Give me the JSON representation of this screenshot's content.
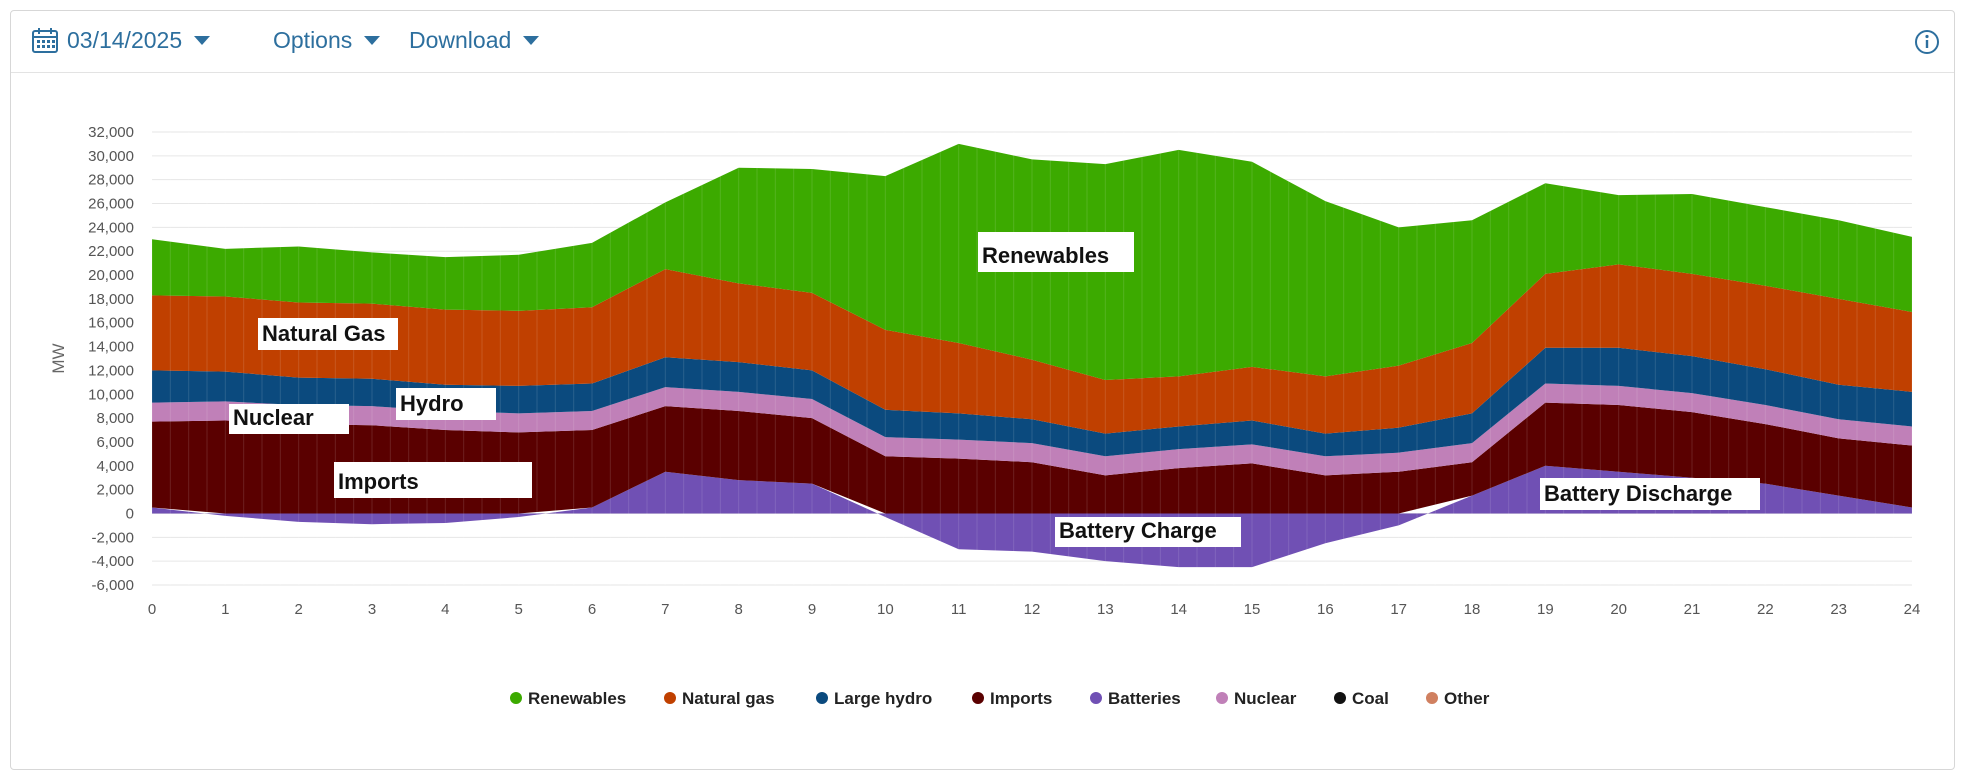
{
  "toolbar": {
    "date": "03/14/2025",
    "options_label": "Options",
    "download_label": "Download"
  },
  "colors": {
    "accent": "#2d6f9e",
    "Renewables": "#3caa00",
    "Natural gas": "#c04000",
    "Large hydro": "#0b4a7e",
    "Imports": "#5a0000",
    "Batteries": "#7050b4",
    "Nuclear": "#c080b8",
    "Coal": "#111111",
    "Other": "#d08060"
  },
  "chart_data": {
    "type": "area",
    "stacked": true,
    "xlabel": "",
    "ylabel": "MW",
    "xlim": [
      0,
      24
    ],
    "ylim": [
      -6000,
      32000
    ],
    "x_ticks": [
      "0",
      "1",
      "2",
      "3",
      "4",
      "5",
      "6",
      "7",
      "8",
      "9",
      "10",
      "11",
      "12",
      "13",
      "14",
      "15",
      "16",
      "17",
      "18",
      "19",
      "20",
      "21",
      "22",
      "23",
      "24"
    ],
    "y_ticks": [
      "32,000",
      "30,000",
      "28,000",
      "26,000",
      "24,000",
      "22,000",
      "20,000",
      "18,000",
      "16,000",
      "14,000",
      "12,000",
      "10,000",
      "8,000",
      "6,000",
      "4,000",
      "2,000",
      "0",
      "-2,000",
      "-4,000",
      "-6,000"
    ],
    "grid": "horizontal",
    "legend_position": "bottom",
    "x": [
      0,
      1,
      2,
      3,
      4,
      5,
      6,
      7,
      8,
      9,
      10,
      11,
      12,
      13,
      14,
      15,
      16,
      17,
      18,
      19,
      20,
      21,
      22,
      23,
      24
    ],
    "series": [
      {
        "name": "Batteries",
        "values": [
          500,
          -200,
          -700,
          -900,
          -800,
          -300,
          500,
          3500,
          2800,
          2500,
          -300,
          -3000,
          -3200,
          -4000,
          -4500,
          -4500,
          -2500,
          -1000,
          1500,
          4000,
          3500,
          3000,
          2500,
          1500,
          500
        ]
      },
      {
        "name": "Imports",
        "values": [
          7200,
          7800,
          7500,
          7400,
          7000,
          6800,
          6500,
          5500,
          5800,
          5500,
          4800,
          4600,
          4300,
          3200,
          3800,
          4200,
          3200,
          3500,
          2800,
          5300,
          5600,
          5500,
          5000,
          4800,
          5200
        ]
      },
      {
        "name": "Nuclear",
        "values": [
          1600,
          1600,
          1600,
          1600,
          1600,
          1600,
          1600,
          1600,
          1600,
          1600,
          1600,
          1600,
          1600,
          1600,
          1600,
          1600,
          1600,
          1600,
          1600,
          1600,
          1600,
          1600,
          1600,
          1600,
          1600
        ]
      },
      {
        "name": "Large hydro",
        "values": [
          2700,
          2500,
          2300,
          2300,
          2200,
          2300,
          2300,
          2500,
          2500,
          2400,
          2300,
          2200,
          2000,
          1900,
          1900,
          2000,
          1900,
          2100,
          2500,
          3000,
          3200,
          3100,
          3000,
          2900,
          2900
        ]
      },
      {
        "name": "Natural gas",
        "values": [
          6300,
          6300,
          6300,
          6300,
          6300,
          6300,
          6400,
          7400,
          6600,
          6500,
          6700,
          5900,
          5000,
          4500,
          4200,
          4500,
          4800,
          5200,
          5900,
          6200,
          7000,
          6900,
          7000,
          7200,
          6700
        ]
      },
      {
        "name": "Renewables",
        "values": [
          4700,
          4000,
          4700,
          4300,
          4400,
          4700,
          5400,
          5600,
          9700,
          10400,
          12900,
          16700,
          16800,
          18100,
          19000,
          17200,
          14700,
          11600,
          10300,
          7600,
          5800,
          6700,
          6600,
          6600,
          6300
        ]
      },
      {
        "name": "Coal",
        "values": [
          0,
          0,
          0,
          0,
          0,
          0,
          0,
          0,
          0,
          0,
          0,
          0,
          0,
          0,
          0,
          0,
          0,
          0,
          0,
          0,
          0,
          0,
          0,
          0,
          0
        ]
      },
      {
        "name": "Other",
        "values": [
          0,
          0,
          0,
          0,
          0,
          0,
          0,
          0,
          0,
          0,
          0,
          0,
          0,
          0,
          0,
          0,
          0,
          0,
          0,
          0,
          0,
          0,
          0,
          0,
          0
        ]
      }
    ],
    "legend": [
      "Renewables",
      "Natural gas",
      "Large hydro",
      "Imports",
      "Batteries",
      "Nuclear",
      "Coal",
      "Other"
    ],
    "annotations": [
      "Renewables",
      "Natural Gas",
      "Hydro",
      "Nuclear",
      "Imports",
      "Battery Charge",
      "Battery Discharge"
    ]
  }
}
